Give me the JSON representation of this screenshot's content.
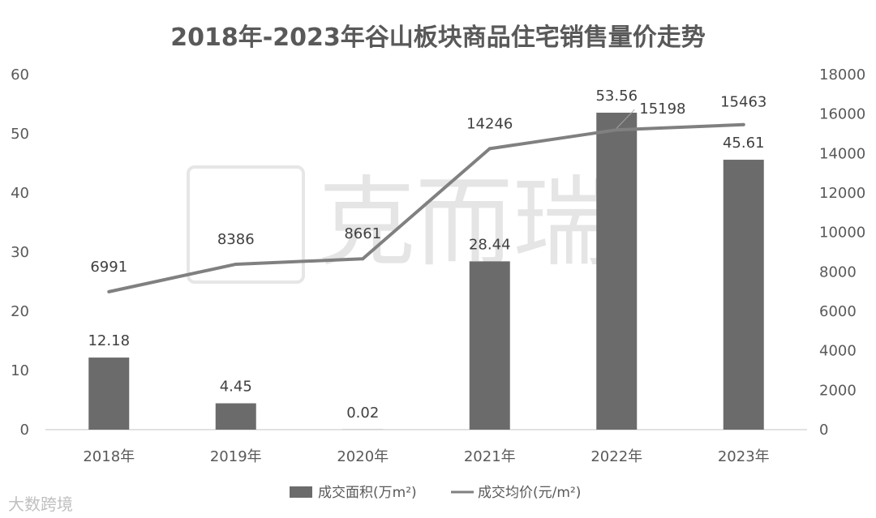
{
  "chart_data": {
    "type": "bar",
    "title": "2018年-2023年谷山板块商品住宅销售量价走势",
    "categories": [
      "2018年",
      "2019年",
      "2020年",
      "2021年",
      "2022年",
      "2023年"
    ],
    "series": [
      {
        "name": "成交面积(万m²)",
        "type": "bar",
        "axis": "left",
        "color": "#6b6b6b",
        "values": [
          12.18,
          4.45,
          0.02,
          28.44,
          53.56,
          45.61
        ],
        "labels": [
          "12.18",
          "4.45",
          "0.02",
          "28.44",
          "53.56",
          "45.61"
        ]
      },
      {
        "name": "成交均价(元/m²)",
        "type": "line",
        "axis": "right",
        "color": "#808080",
        "values": [
          6991,
          8386,
          8661,
          14246,
          15198,
          15463
        ],
        "labels": [
          "6991",
          "8386",
          "8661",
          "14246",
          "15198",
          "15463"
        ]
      }
    ],
    "y_left": {
      "min": 0,
      "max": 60,
      "ticks": [
        "0",
        "10",
        "20",
        "30",
        "40",
        "50",
        "60"
      ]
    },
    "y_right": {
      "min": 0,
      "max": 18000,
      "ticks": [
        "0",
        "2000",
        "4000",
        "6000",
        "8000",
        "10000",
        "12000",
        "14000",
        "16000",
        "18000"
      ]
    },
    "grid": false,
    "legend": "bottom"
  },
  "watermark": {
    "brand": "克而瑞",
    "source": "大数跨境"
  }
}
